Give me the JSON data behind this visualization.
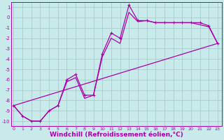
{
  "background_color": "#c8eaea",
  "grid_color": "#a8cccc",
  "line_color": "#aa00aa",
  "xlabel": "Windchill (Refroidissement éolien,°C)",
  "xlabel_fontsize": 6.5,
  "ytick_vals": [
    1,
    0,
    -1,
    -2,
    -3,
    -4,
    -5,
    -6,
    -7,
    -8,
    -9,
    -10
  ],
  "xtick_vals": [
    0,
    1,
    2,
    3,
    4,
    5,
    6,
    7,
    8,
    9,
    10,
    11,
    12,
    13,
    14,
    15,
    16,
    17,
    18,
    19,
    20,
    21,
    22,
    23
  ],
  "xlim": [
    -0.3,
    23.5
  ],
  "ylim": [
    -10.5,
    1.5
  ],
  "line1_x": [
    0,
    1,
    2,
    3,
    4,
    5,
    6,
    7,
    8,
    9,
    10,
    11,
    12,
    13,
    14,
    15,
    16,
    17,
    18,
    19,
    20,
    21,
    22,
    23
  ],
  "line1_y": [
    -8.5,
    -9.5,
    -10.0,
    -10.0,
    -9.0,
    -8.5,
    -6.0,
    -5.5,
    -7.5,
    -7.5,
    -3.5,
    -1.5,
    -2.0,
    1.2,
    -0.3,
    -0.3,
    -0.5,
    -0.5,
    -0.5,
    -0.5,
    -0.5,
    -0.5,
    -0.8,
    -2.5
  ],
  "line2_x": [
    0,
    1,
    2,
    3,
    4,
    5,
    6,
    7,
    8,
    9,
    10,
    11,
    12,
    13,
    14,
    15,
    16,
    17,
    18,
    19,
    20,
    21,
    22,
    23
  ],
  "line2_y": [
    -8.5,
    -9.5,
    -10.0,
    -10.0,
    -9.0,
    -8.5,
    -6.2,
    -5.8,
    -7.8,
    -7.5,
    -3.8,
    -2.0,
    -2.5,
    0.5,
    -0.4,
    -0.3,
    -0.5,
    -0.5,
    -0.5,
    -0.5,
    -0.5,
    -0.7,
    -0.9,
    -2.5
  ],
  "line3_x": [
    0,
    23
  ],
  "line3_y": [
    -8.5,
    -2.5
  ],
  "line_width": 0.9,
  "marker_size": 3.5
}
